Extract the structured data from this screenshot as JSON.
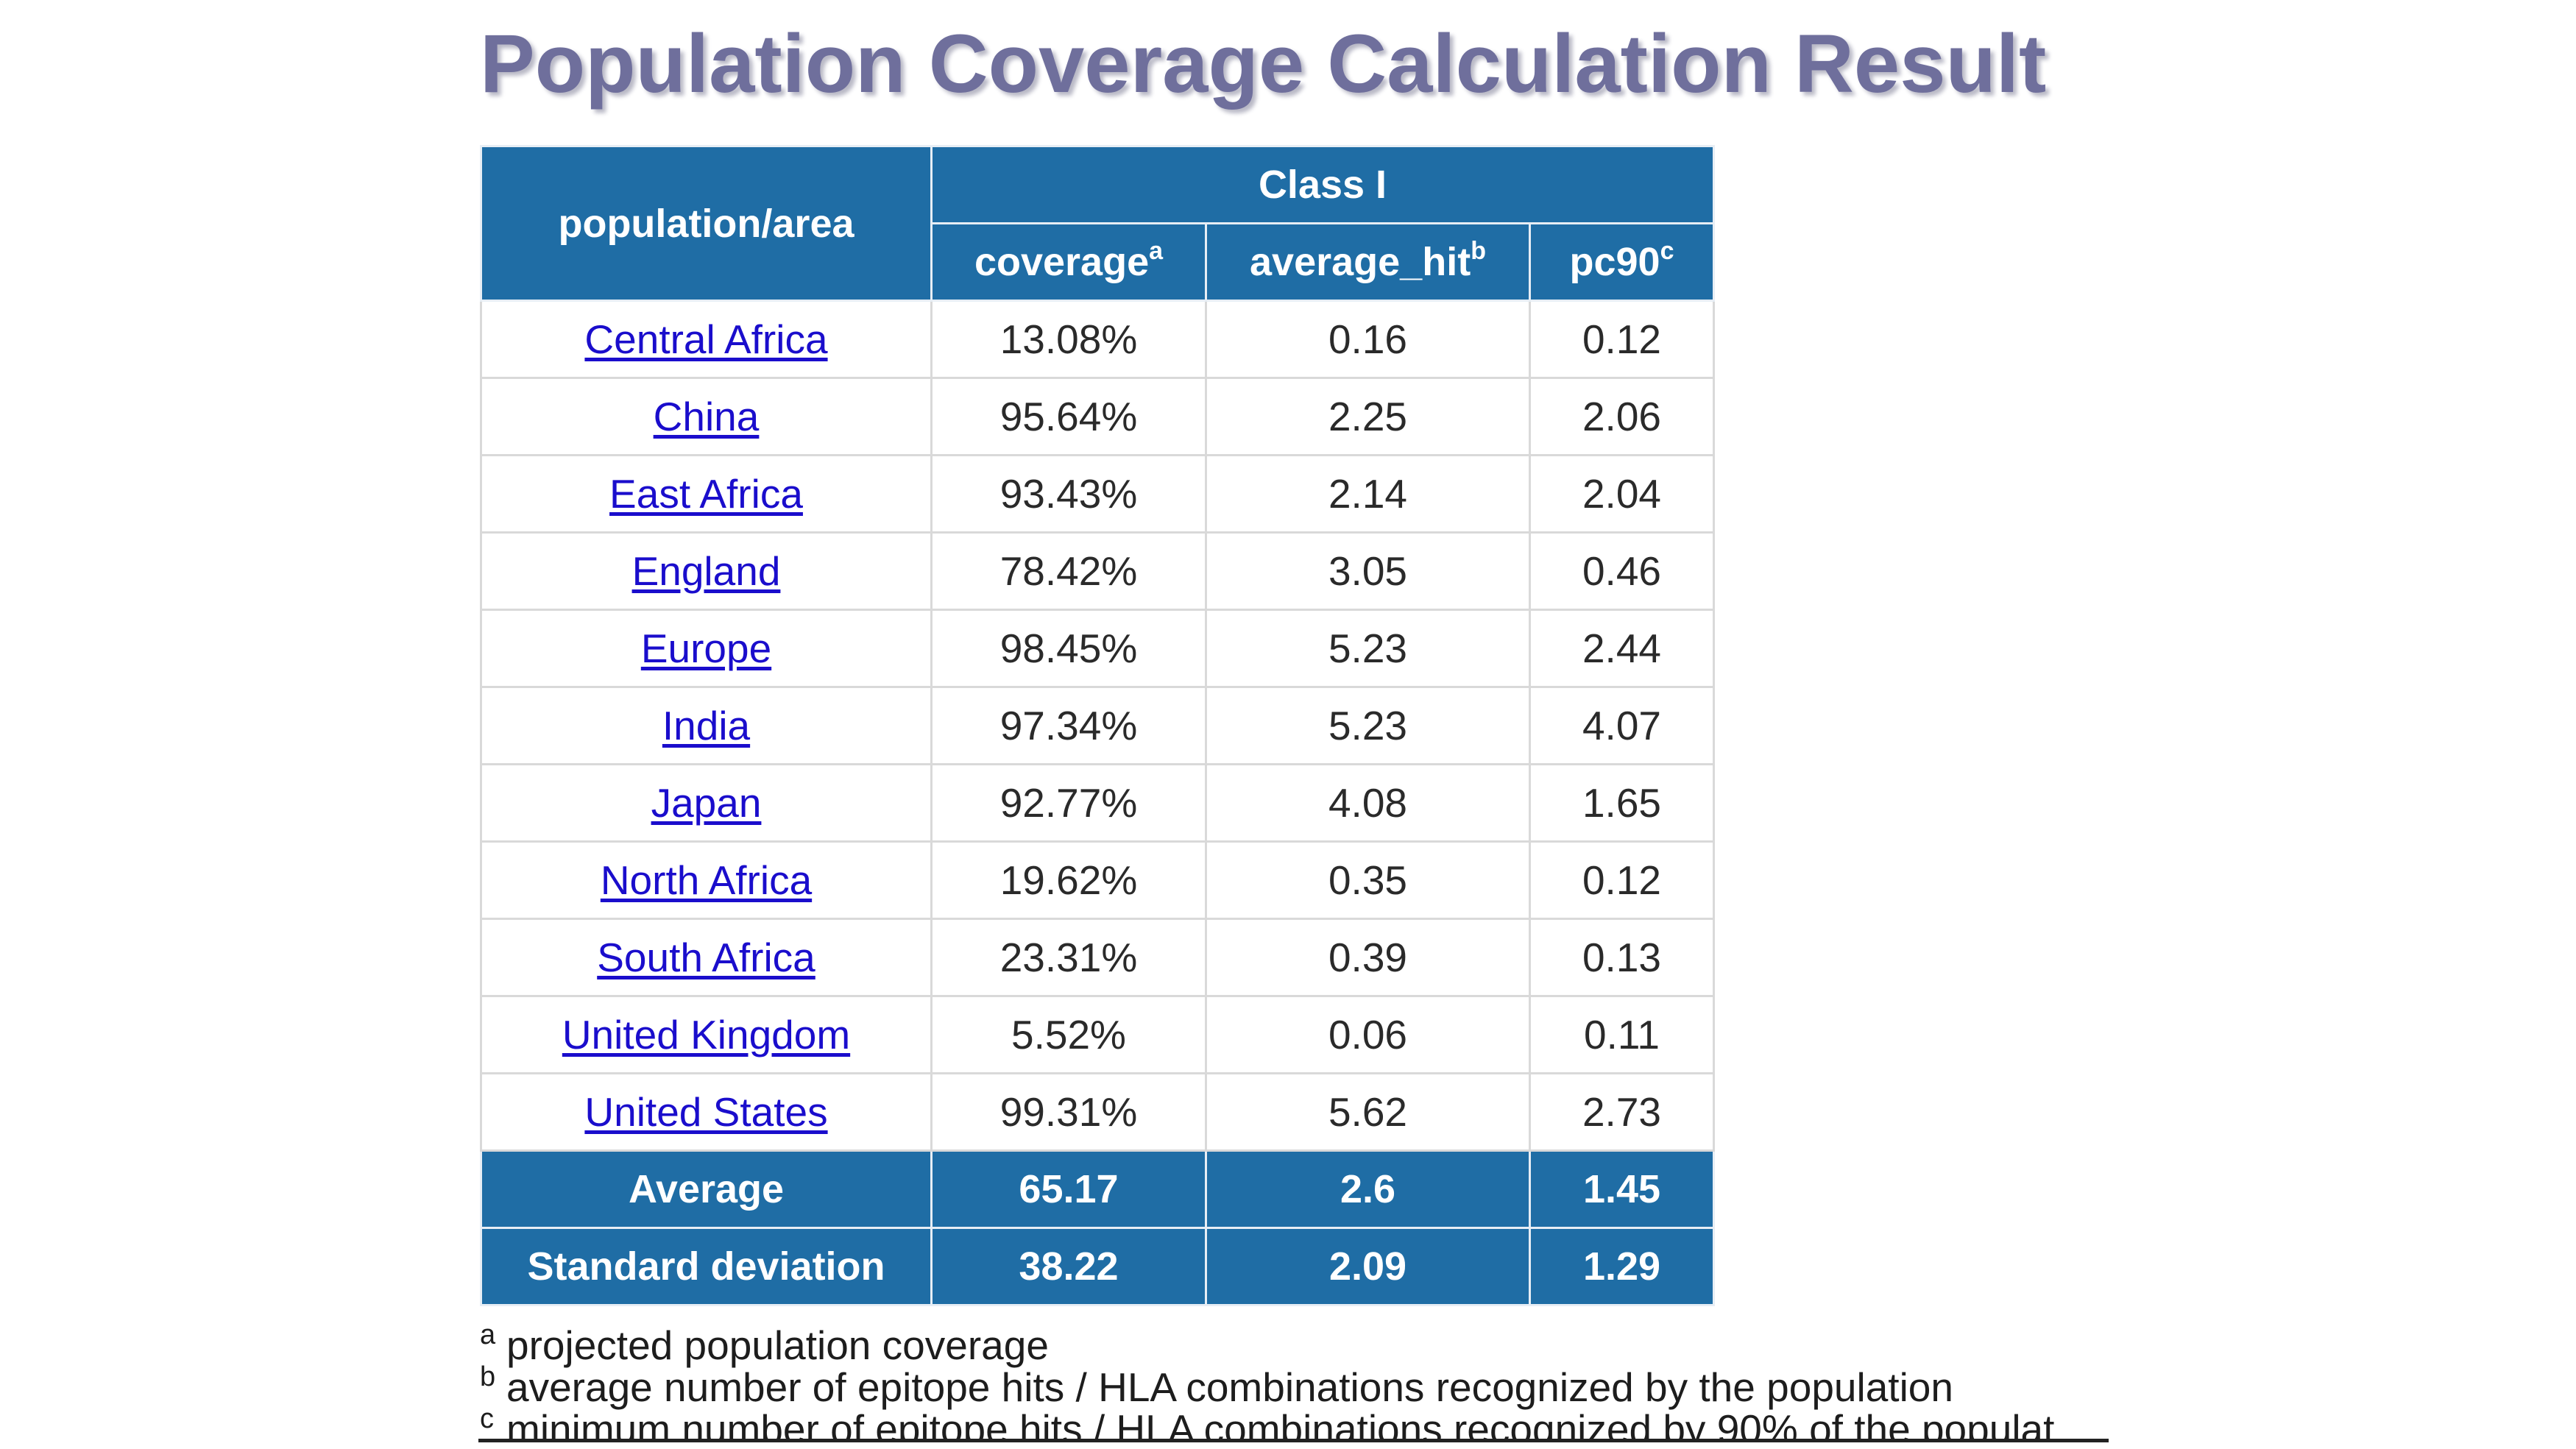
{
  "title": "Population Coverage Calculation Result",
  "table": {
    "header": {
      "population_area": "population/area",
      "class_group": "Class I",
      "columns": [
        {
          "label": "coverage",
          "sup": "a"
        },
        {
          "label": "average_hit",
          "sup": "b"
        },
        {
          "label": "pc90",
          "sup": "c"
        }
      ]
    },
    "rows": [
      {
        "area": "Central Africa",
        "coverage": "13.08%",
        "average_hit": "0.16",
        "pc90": "0.12"
      },
      {
        "area": "China",
        "coverage": "95.64%",
        "average_hit": "2.25",
        "pc90": "2.06"
      },
      {
        "area": "East Africa",
        "coverage": "93.43%",
        "average_hit": "2.14",
        "pc90": "2.04"
      },
      {
        "area": "England",
        "coverage": "78.42%",
        "average_hit": "3.05",
        "pc90": "0.46"
      },
      {
        "area": "Europe",
        "coverage": "98.45%",
        "average_hit": "5.23",
        "pc90": "2.44"
      },
      {
        "area": "India",
        "coverage": "97.34%",
        "average_hit": "5.23",
        "pc90": "4.07"
      },
      {
        "area": "Japan",
        "coverage": "92.77%",
        "average_hit": "4.08",
        "pc90": "1.65"
      },
      {
        "area": "North Africa",
        "coverage": "19.62%",
        "average_hit": "0.35",
        "pc90": "0.12"
      },
      {
        "area": "South Africa",
        "coverage": "23.31%",
        "average_hit": "0.39",
        "pc90": "0.13"
      },
      {
        "area": "United Kingdom",
        "coverage": "5.52%",
        "average_hit": "0.06",
        "pc90": "0.11"
      },
      {
        "area": "United States",
        "coverage": "99.31%",
        "average_hit": "5.62",
        "pc90": "2.73"
      }
    ],
    "summary": [
      {
        "label": "Average",
        "coverage": "65.17",
        "average_hit": "2.6",
        "pc90": "1.45"
      },
      {
        "label": "Standard deviation",
        "coverage": "38.22",
        "average_hit": "2.09",
        "pc90": "1.29"
      }
    ]
  },
  "footnotes": [
    {
      "mark": "a",
      "text": "projected population coverage"
    },
    {
      "mark": "b",
      "text": "average number of epitope hits / HLA combinations recognized by the population"
    },
    {
      "mark": "c",
      "text": "minimum number of epitope hits / HLA combinations recognized by 90% of the populat"
    }
  ],
  "colors": {
    "header_bg": "#1f6da5",
    "title": "#6f6f9c",
    "link": "#1a0dcc"
  }
}
